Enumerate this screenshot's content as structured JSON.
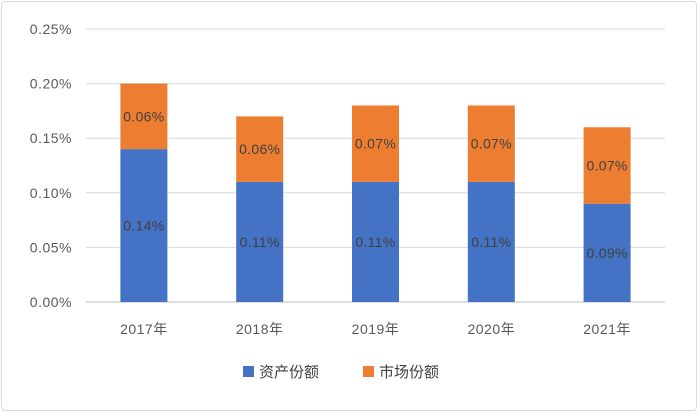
{
  "chart_data": {
    "type": "bar",
    "stacked": true,
    "categories": [
      "2017年",
      "2018年",
      "2019年",
      "2020年",
      "2021年"
    ],
    "series": [
      {
        "name": "资产份额",
        "color": "#4472C4",
        "values": [
          0.14,
          0.11,
          0.11,
          0.11,
          0.09
        ],
        "labels": [
          "0.14%",
          "0.11%",
          "0.11%",
          "0.11%",
          "0.09%"
        ]
      },
      {
        "name": "市场份额",
        "color": "#ED7D31",
        "values": [
          0.06,
          0.06,
          0.07,
          0.07,
          0.07
        ],
        "labels": [
          "0.06%",
          "0.06%",
          "0.07%",
          "0.07%",
          "0.07%"
        ]
      }
    ],
    "y_ticks": [
      "0.00%",
      "0.05%",
      "0.10%",
      "0.15%",
      "0.20%",
      "0.25%"
    ],
    "ylim": [
      0,
      0.25
    ],
    "y_unit": "%",
    "grid": true,
    "legend_position": "bottom",
    "title": "",
    "xlabel": "",
    "ylabel": ""
  }
}
